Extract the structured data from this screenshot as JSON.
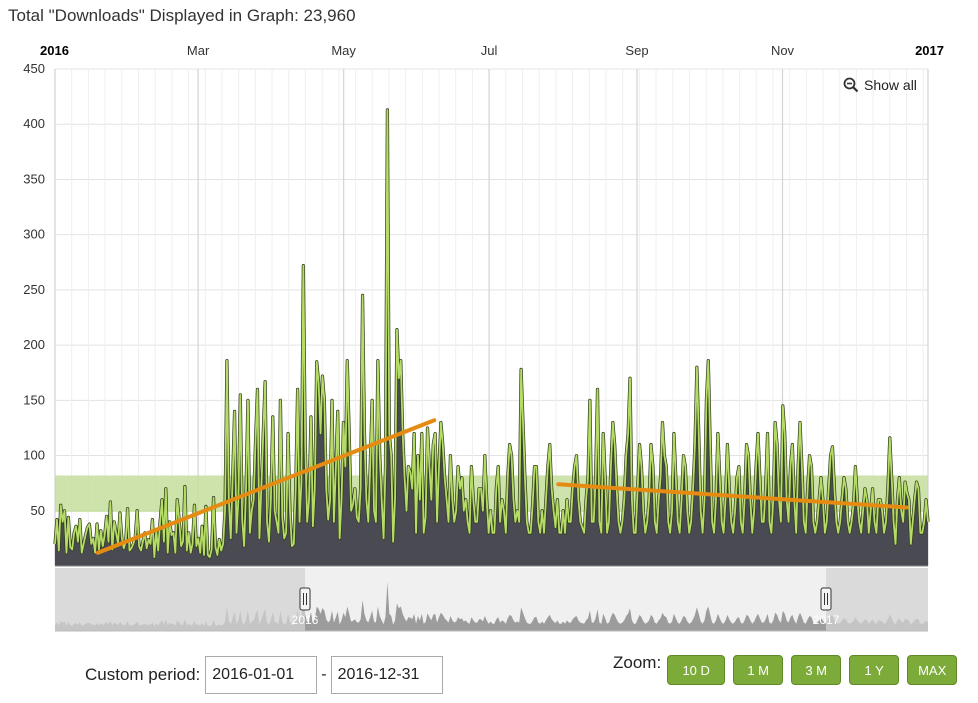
{
  "header": {
    "title": "Total \"Downloads\" Displayed in Graph: 23,960"
  },
  "controls": {
    "show_all_label": "Show all",
    "custom_period_label": "Custom period:",
    "date_from": "2016-01-01",
    "date_to": "2016-12-31",
    "date_separator": "-",
    "zoom_label": "Zoom:",
    "zoom_buttons": [
      "10 D",
      "1 M",
      "3 M",
      "1 Y",
      "MAX"
    ]
  },
  "colors": {
    "area_fill": "#4a4b52",
    "line": "#7cab3a",
    "line_highlight": "#b5dc66",
    "trend": "#e58b12",
    "band": "#c5dd9c",
    "navigator_bg": "#d3d3d3",
    "navigator_series": "#9c9c9c",
    "button": "#7cab3a"
  },
  "chart_data": {
    "type": "area",
    "x_axis": {
      "range": [
        "2016-01-01",
        "2017-01-01"
      ],
      "labels": [
        "2016",
        "Mar",
        "May",
        "Jul",
        "Sep",
        "Nov",
        "2017"
      ],
      "bold_labels": [
        "2016",
        "2017"
      ]
    },
    "y_axis": {
      "range": [
        0,
        450
      ],
      "ticks": [
        0,
        50,
        100,
        150,
        200,
        250,
        300,
        350,
        400,
        450
      ]
    },
    "grid": true,
    "band": {
      "from": 49,
      "to": 82
    },
    "series": [
      {
        "values": [
          20,
          42,
          14,
          55,
          40,
          50,
          12,
          44,
          17,
          15,
          30,
          36,
          22,
          42,
          12,
          20,
          28,
          35,
          38,
          20,
          25,
          12,
          38,
          15,
          32,
          18,
          28,
          45,
          22,
          58,
          15,
          40,
          30,
          20,
          48,
          25,
          16,
          22,
          52,
          14,
          16,
          20,
          26,
          50,
          18,
          14,
          22,
          30,
          16,
          24,
          20,
          42,
          8,
          32,
          14,
          40,
          60,
          22,
          70,
          12,
          40,
          28,
          30,
          12,
          60,
          42,
          18,
          22,
          72,
          14,
          30,
          12,
          20,
          55,
          18,
          25,
          12,
          36,
          10,
          54,
          10,
          8,
          15,
          62,
          17,
          10,
          24,
          14,
          20,
          50,
          186,
          60,
          25,
          80,
          140,
          30,
          60,
          155,
          42,
          18,
          70,
          150,
          30,
          50,
          60,
          115,
          160,
          25,
          70,
          120,
          167,
          40,
          22,
          60,
          135,
          50,
          40,
          30,
          150,
          44,
          25,
          30,
          120,
          50,
          18,
          20,
          70,
          160,
          40,
          76,
          272,
          110,
          40,
          60,
          135,
          36,
          70,
          185,
          166,
          120,
          172,
          150,
          70,
          42,
          60,
          150,
          40,
          88,
          140,
          25,
          60,
          130,
          90,
          186,
          120,
          50,
          56,
          70,
          44,
          40,
          70,
          245,
          120,
          60,
          40,
          90,
          150,
          50,
          40,
          186,
          100,
          60,
          25,
          90,
          413,
          120,
          100,
          22,
          60,
          214,
          170,
          186,
          120,
          80,
          50,
          90,
          85,
          70,
          120,
          30,
          100,
          60,
          120,
          30,
          44,
          125,
          90,
          60,
          110,
          120,
          40,
          90,
          130,
          110,
          80,
          60,
          40,
          100,
          60,
          40,
          50,
          90,
          70,
          80,
          50,
          60,
          40,
          30,
          90,
          60,
          40,
          40,
          70,
          70,
          50,
          100,
          60,
          30,
          50,
          30,
          30,
          70,
          90,
          40,
          60,
          50,
          30,
          80,
          110,
          100,
          60,
          40,
          50,
          40,
          178,
          130,
          80,
          40,
          30,
          30,
          55,
          90,
          90,
          40,
          30,
          50,
          30,
          60,
          90,
          110,
          70,
          50,
          35,
          60,
          30,
          30,
          50,
          30,
          60,
          40,
          40,
          70,
          90,
          100,
          60,
          40,
          35,
          30,
          60,
          80,
          150,
          40,
          40,
          80,
          160,
          40,
          30,
          120,
          80,
          30,
          40,
          90,
          130,
          110,
          70,
          40,
          30,
          40,
          60,
          100,
          120,
          170,
          60,
          30,
          30,
          70,
          110,
          90,
          50,
          30,
          40,
          60,
          110,
          90,
          40,
          30,
          60,
          80,
          130,
          100,
          90,
          40,
          30,
          50,
          120,
          80,
          40,
          30,
          60,
          100,
          90,
          50,
          30,
          40,
          70,
          110,
          180,
          120,
          50,
          30,
          60,
          150,
          186,
          110,
          40,
          30,
          60,
          120,
          80,
          40,
          30,
          60,
          110,
          70,
          40,
          30,
          50,
          80,
          90,
          40,
          30,
          60,
          110,
          100,
          60,
          30,
          50,
          90,
          120,
          80,
          40,
          40,
          70,
          120,
          40,
          30,
          60,
          130,
          110,
          60,
          40,
          145,
          120,
          60,
          40,
          90,
          110,
          60,
          30,
          90,
          130,
          90,
          40,
          30,
          70,
          100,
          90,
          40,
          30,
          40,
          60,
          80,
          60,
          30,
          40,
          70,
          100,
          108,
          70,
          40,
          30,
          40,
          60,
          80,
          70,
          40,
          30,
          40,
          55,
          90,
          60,
          40,
          30,
          50,
          70,
          60,
          30,
          50,
          70,
          40,
          30,
          60,
          60,
          50,
          30,
          40,
          70,
          116,
          80,
          40,
          20,
          60,
          80,
          50,
          40,
          76,
          66,
          60,
          20,
          40,
          60,
          76,
          70,
          30,
          30,
          40,
          60,
          40
        ]
      }
    ],
    "trend_lines": [
      {
        "from": {
          "x": "2016-01-19",
          "y": 12
        },
        "to": {
          "x": "2016-06-08",
          "y": 132
        }
      },
      {
        "from": {
          "x": "2016-07-30",
          "y": 74
        },
        "to": {
          "x": "2016-12-23",
          "y": 53
        }
      }
    ],
    "navigator": {
      "range_labels": [
        "2016",
        "2017"
      ],
      "selected_from": "2016-01-01",
      "selected_to": "2016-12-31"
    }
  }
}
